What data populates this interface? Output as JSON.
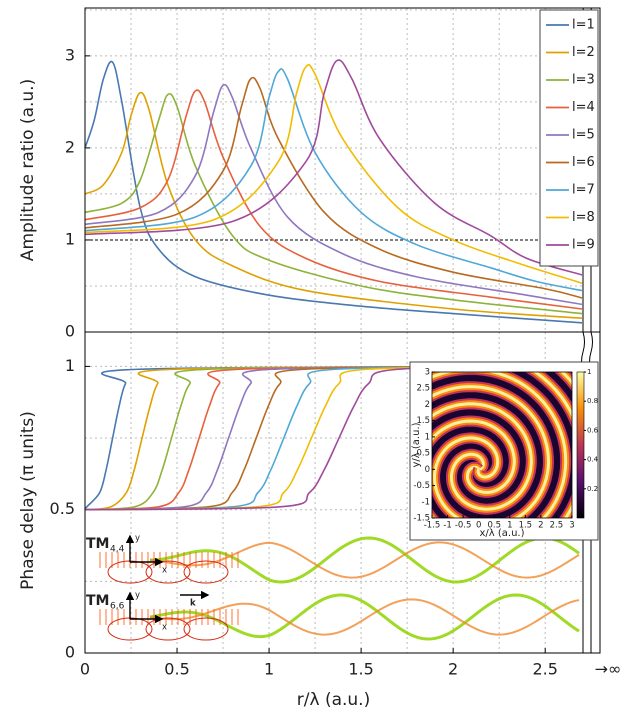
{
  "chart_data": [
    {
      "type": "line",
      "ylabel": "Amplitude ratio (a.u.)",
      "xlim": [
        0,
        2.7
      ],
      "ylim": [
        0,
        3.52
      ],
      "yticks": [
        0,
        1,
        2,
        3
      ],
      "ygrid": [
        0.5,
        1,
        1.5,
        2,
        2.5,
        3,
        3.5
      ],
      "xgrid": [
        0.25,
        0.5,
        0.75,
        1,
        1.25,
        1.5,
        1.75,
        2,
        2.25,
        2.5
      ],
      "reference_line": 1,
      "legend": "upper right",
      "series": [
        {
          "name": "l=1",
          "color": "#4a78b0",
          "x": [
            0,
            0.05,
            0.1,
            0.15,
            0.2,
            0.3,
            0.4,
            0.6,
            1.0,
            1.5,
            2.0,
            2.7
          ],
          "values": [
            2.0,
            2.3,
            2.75,
            2.93,
            2.5,
            1.35,
            0.9,
            0.6,
            0.4,
            0.28,
            0.2,
            0.1
          ]
        },
        {
          "name": "l=2",
          "color": "#e0a000",
          "x": [
            0,
            0.1,
            0.2,
            0.25,
            0.3,
            0.35,
            0.45,
            0.6,
            0.8,
            1.2,
            2.0,
            2.7
          ],
          "values": [
            1.5,
            1.6,
            1.95,
            2.35,
            2.6,
            2.4,
            1.6,
            1.0,
            0.72,
            0.45,
            0.25,
            0.15
          ]
        },
        {
          "name": "l=3",
          "color": "#8db33a",
          "x": [
            0,
            0.2,
            0.3,
            0.4,
            0.45,
            0.5,
            0.6,
            0.8,
            1.0,
            1.5,
            2.0,
            2.7
          ],
          "values": [
            1.3,
            1.4,
            1.65,
            2.3,
            2.58,
            2.45,
            1.8,
            1.05,
            0.78,
            0.5,
            0.35,
            0.2
          ]
        },
        {
          "name": "l=4",
          "color": "#e8603c",
          "x": [
            0,
            0.3,
            0.45,
            0.55,
            0.6,
            0.65,
            0.75,
            0.95,
            1.2,
            1.6,
            2.2,
            2.7
          ],
          "values": [
            1.22,
            1.35,
            1.65,
            2.35,
            2.62,
            2.5,
            1.9,
            1.15,
            0.8,
            0.55,
            0.38,
            0.25
          ]
        },
        {
          "name": "l=5",
          "color": "#8f77c0",
          "x": [
            0,
            0.4,
            0.6,
            0.7,
            0.75,
            0.8,
            0.9,
            1.1,
            1.4,
            1.8,
            2.4,
            2.7
          ],
          "values": [
            1.17,
            1.3,
            1.7,
            2.4,
            2.68,
            2.55,
            2.0,
            1.25,
            0.85,
            0.6,
            0.4,
            0.3
          ]
        },
        {
          "name": "l=6",
          "color": "#b86a1e",
          "x": [
            0,
            0.5,
            0.75,
            0.85,
            0.9,
            0.95,
            1.05,
            1.3,
            1.6,
            2.0,
            2.5,
            2.7
          ],
          "values": [
            1.13,
            1.28,
            1.75,
            2.45,
            2.75,
            2.65,
            2.1,
            1.3,
            0.9,
            0.65,
            0.47,
            0.37
          ]
        },
        {
          "name": "l=7",
          "color": "#4fa8d8",
          "x": [
            0,
            0.6,
            0.9,
            1.0,
            1.05,
            1.1,
            1.25,
            1.5,
            1.8,
            2.2,
            2.45,
            2.7
          ],
          "values": [
            1.1,
            1.25,
            1.8,
            2.55,
            2.83,
            2.75,
            1.95,
            1.3,
            0.95,
            0.7,
            0.55,
            0.45
          ]
        },
        {
          "name": "l=8",
          "color": "#f2bc00",
          "x": [
            0,
            0.7,
            1.05,
            1.15,
            1.2,
            1.25,
            1.4,
            1.7,
            2.0,
            2.35,
            2.7
          ],
          "values": [
            1.08,
            1.22,
            1.85,
            2.6,
            2.88,
            2.8,
            2.1,
            1.35,
            1.0,
            0.75,
            0.53
          ]
        },
        {
          "name": "l=9",
          "color": "#a04a9c",
          "x": [
            0,
            0.8,
            1.2,
            1.3,
            1.37,
            1.45,
            1.6,
            1.9,
            2.2,
            2.4,
            2.7
          ],
          "values": [
            1.06,
            1.2,
            1.85,
            2.6,
            2.95,
            2.75,
            2.1,
            1.4,
            1.05,
            0.8,
            0.62
          ]
        }
      ]
    },
    {
      "type": "line",
      "ylabel": "Phase delay (π units)",
      "xlabel": "r/λ (a.u.)",
      "x_infinity_label": "→∞",
      "xlim": [
        0,
        2.7
      ],
      "ylim": [
        0,
        1.12
      ],
      "xticks": [
        0,
        0.5,
        1,
        1.5,
        2,
        2.5
      ],
      "yticks": [
        0,
        0.5,
        1
      ],
      "ygrid": [
        0.25,
        0.5,
        0.75,
        1
      ],
      "xgrid": [
        0.25,
        0.5,
        0.75,
        1,
        1.25,
        1.5,
        1.75,
        2,
        2.25,
        2.5
      ],
      "series": [
        {
          "name": "l=1",
          "color": "#4a78b0",
          "x": [
            0,
            0.01,
            0.08,
            0.115,
            0.15,
            0.185,
            0.22,
            0.29,
            2.7
          ],
          "values": [
            0.5,
            0.51,
            0.56,
            0.64,
            0.75,
            0.86,
            0.94,
            0.99,
            1.0
          ]
        },
        {
          "name": "l=2",
          "color": "#e0a000",
          "x": [
            0,
            0.14,
            0.225,
            0.268,
            0.31,
            0.353,
            0.395,
            0.48,
            2.7
          ],
          "values": [
            0.5,
            0.51,
            0.56,
            0.64,
            0.75,
            0.86,
            0.94,
            0.99,
            1.0
          ]
        },
        {
          "name": "l=3",
          "color": "#8db33a",
          "x": [
            0,
            0.27,
            0.37,
            0.42,
            0.47,
            0.52,
            0.57,
            0.67,
            2.7
          ],
          "values": [
            0.5,
            0.51,
            0.56,
            0.64,
            0.75,
            0.86,
            0.94,
            0.99,
            1.0
          ]
        },
        {
          "name": "l=4",
          "color": "#e8603c",
          "x": [
            0,
            0.4,
            0.51,
            0.565,
            0.62,
            0.675,
            0.73,
            0.84,
            2.7
          ],
          "values": [
            0.5,
            0.51,
            0.56,
            0.64,
            0.75,
            0.86,
            0.94,
            0.99,
            1.0
          ]
        },
        {
          "name": "l=5",
          "color": "#8f77c0",
          "x": [
            0,
            0.54,
            0.66,
            0.72,
            0.78,
            0.84,
            0.9,
            1.02,
            2.7
          ],
          "values": [
            0.5,
            0.51,
            0.56,
            0.64,
            0.75,
            0.86,
            0.94,
            0.99,
            1.0
          ]
        },
        {
          "name": "l=6",
          "color": "#b86a1e",
          "x": [
            0,
            0.67,
            0.8,
            0.865,
            0.93,
            0.995,
            1.06,
            1.19,
            2.7
          ],
          "values": [
            0.5,
            0.51,
            0.56,
            0.64,
            0.75,
            0.86,
            0.94,
            0.99,
            1.0
          ]
        },
        {
          "name": "l=7",
          "color": "#4fa8d8",
          "x": [
            0,
            0.8,
            0.94,
            1.01,
            1.08,
            1.15,
            1.22,
            1.36,
            2.7
          ],
          "values": [
            0.5,
            0.51,
            0.56,
            0.64,
            0.75,
            0.86,
            0.94,
            0.99,
            1.0
          ]
        },
        {
          "name": "l=8",
          "color": "#f2bc00",
          "x": [
            0,
            0.93,
            1.08,
            1.155,
            1.23,
            1.305,
            1.38,
            1.53,
            2.7
          ],
          "values": [
            0.5,
            0.51,
            0.56,
            0.64,
            0.75,
            0.86,
            0.94,
            0.99,
            1.0
          ]
        },
        {
          "name": "l=9",
          "color": "#a04a9c",
          "x": [
            0,
            1.06,
            1.22,
            1.3,
            1.38,
            1.46,
            1.54,
            1.7,
            2.7
          ],
          "values": [
            0.5,
            0.51,
            0.56,
            0.64,
            0.75,
            0.86,
            0.94,
            0.99,
            1.0
          ]
        }
      ],
      "annotations": [
        {
          "text": "TM",
          "subscript": "4,4"
        },
        {
          "text": "TM",
          "subscript": "6,6"
        },
        {
          "text": "y"
        },
        {
          "text": "x"
        },
        {
          "text": "y"
        },
        {
          "text": "x"
        },
        {
          "text": "k"
        }
      ],
      "inset": {
        "xlabel": "x/λ (a.u.)",
        "ylabel": "y/λ (a.u.)",
        "xlim": [
          -1.5,
          3
        ],
        "ylim": [
          -1.5,
          3
        ],
        "xticks": [
          -1.5,
          -1,
          -0.5,
          0,
          0.5,
          1,
          1.5,
          2,
          2.5,
          3
        ],
        "yticks": [
          -1.5,
          -1,
          -0.5,
          0,
          0.5,
          1,
          1.5,
          2,
          2.5,
          3
        ],
        "colorbar_lim": [
          0,
          1
        ],
        "colorbar_ticks": [
          0.2,
          0.4,
          0.6,
          0.8,
          1
        ]
      }
    }
  ]
}
